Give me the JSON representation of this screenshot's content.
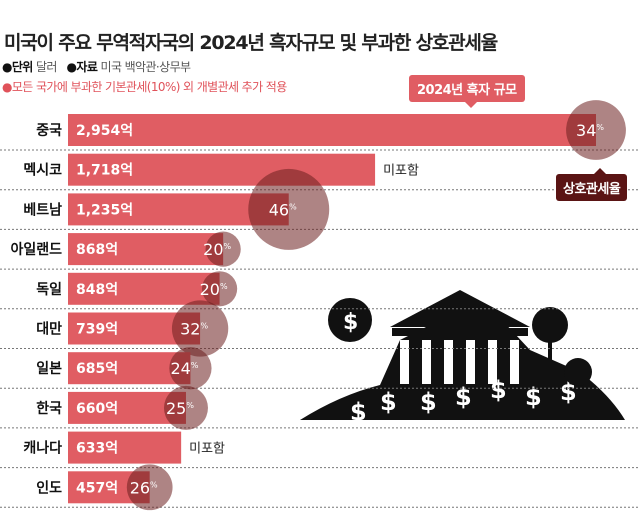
{
  "chart_data": {
    "type": "bar",
    "title": "미국이 주요 무역적자국의 2024년 흑자규모 및 부과한 상호관세율",
    "unit_label": "●단위",
    "unit": "달러",
    "source_label": "●자료",
    "source": "미국 백악관·상무부",
    "note": "●모든 국가에 부과한 기본관세(10%) 외 개별관세 추가 적용",
    "legend_bar": "2024년 흑자 규모",
    "legend_circle": "상호관세율",
    "categories": [
      "중국",
      "멕시코",
      "베트남",
      "아일랜드",
      "독일",
      "대만",
      "일본",
      "한국",
      "캐나다",
      "인도"
    ],
    "values": [
      2954,
      1718,
      1235,
      868,
      848,
      739,
      685,
      660,
      633,
      457
    ],
    "value_labels": [
      "2,954억",
      "1,718억",
      "1,235억",
      "868억",
      "848억",
      "739억",
      "685억",
      "660억",
      "633억",
      "457억"
    ],
    "tariffs": [
      34,
      null,
      46,
      20,
      20,
      32,
      24,
      25,
      null,
      26
    ],
    "tariff_labels": [
      "34",
      "미포함",
      "46",
      "20",
      "20",
      "32",
      "24",
      "25",
      "미포함",
      "26"
    ],
    "percent_sign": "%",
    "colors": {
      "bar": "#e05d63",
      "circle": "#6b1f1f",
      "label": "#e0525a"
    }
  }
}
